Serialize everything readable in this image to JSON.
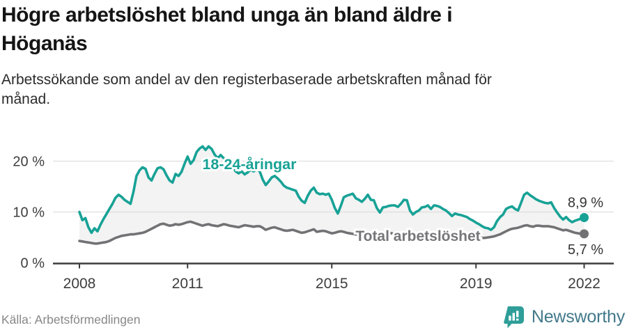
{
  "header": {
    "title": "Högre arbetslöshet bland unga än bland äldre i\nHöganäs",
    "subtitle": "Arbetssökande som andel av den registerbaserade arbetskraften månad för\nmånad."
  },
  "footer": {
    "source": "Källa: Arbetsförmedlingen",
    "brand_name": "Newsworthy"
  },
  "colors": {
    "young_line": "#18a296",
    "total_line": "#727275",
    "fill_between": "#f3f3f3",
    "gridline": "#e2e2e2",
    "axis": "#3c3c3c",
    "tick_label": "#3d3d3d",
    "end_label": "#333333",
    "total_label": "#76767a",
    "brand_icon": "#2f9e98",
    "brand_text": "#42798a",
    "title_text": "#151515"
  },
  "chart_data": {
    "type": "line",
    "unit": "%",
    "frequency": "monthly",
    "x_start": "2008-01",
    "x_end": "2022-01",
    "ylim": [
      0,
      24
    ],
    "grid": "horizontal",
    "yticks": [
      {
        "value": 0,
        "label": "0 %"
      },
      {
        "value": 10,
        "label": "10 %"
      },
      {
        "value": 20,
        "label": "20 %"
      }
    ],
    "xticks": [
      {
        "year": 2008,
        "label": "2008"
      },
      {
        "year": 2011,
        "label": "2011"
      },
      {
        "year": 2015,
        "label": "2015"
      },
      {
        "year": 2019,
        "label": "2019"
      },
      {
        "year": 2022,
        "label": "2022"
      }
    ],
    "series": [
      {
        "name": "18-24-åringar",
        "inline_label": "18-24-åringar",
        "end_label": "8,9 %",
        "end_value": 8.9,
        "values": [
          10.0,
          8.4,
          8.8,
          7.0,
          5.9,
          6.8,
          6.2,
          7.5,
          8.6,
          9.6,
          10.6,
          11.6,
          12.8,
          13.4,
          13.0,
          12.4,
          12.0,
          11.6,
          14.0,
          17.1,
          18.2,
          18.8,
          18.5,
          16.8,
          16.2,
          17.5,
          18.6,
          18.8,
          18.4,
          17.2,
          16.2,
          15.8,
          17.5,
          17.1,
          17.9,
          19.5,
          20.9,
          19.5,
          20.2,
          21.8,
          22.5,
          22.9,
          22.2,
          22.9,
          22.4,
          21.3,
          20.6,
          21.2,
          20.6,
          19.8,
          19.2,
          18.6,
          18.0,
          17.6,
          18.0,
          17.4,
          17.8,
          18.3,
          18.0,
          18.4,
          18.0,
          16.4,
          15.3,
          16.0,
          16.8,
          17.1,
          16.6,
          16.0,
          15.2,
          14.8,
          14.6,
          14.4,
          14.2,
          13.0,
          12.2,
          11.8,
          13.2,
          14.2,
          14.8,
          13.8,
          13.5,
          13.6,
          13.4,
          13.6,
          12.4,
          10.8,
          9.7,
          11.2,
          12.9,
          13.2,
          13.4,
          13.6,
          12.7,
          12.4,
          12.0,
          12.6,
          13.4,
          12.4,
          12.3,
          10.8,
          9.9,
          10.9,
          11.0,
          11.2,
          11.3,
          11.3,
          11.0,
          11.6,
          12.4,
          12.3,
          10.3,
          9.5,
          10.0,
          10.3,
          10.9,
          11.0,
          11.3,
          10.6,
          11.3,
          11.2,
          11.0,
          10.6,
          10.3,
          9.8,
          9.2,
          9.7,
          9.5,
          9.4,
          9.2,
          9.0,
          8.6,
          8.3,
          7.9,
          7.6,
          7.2,
          6.9,
          6.8,
          6.5,
          7.0,
          8.2,
          9.0,
          9.5,
          10.6,
          10.9,
          11.1,
          10.6,
          10.3,
          11.8,
          13.4,
          13.8,
          13.3,
          12.9,
          12.5,
          12.2,
          12.0,
          11.8,
          11.7,
          11.9,
          10.8,
          9.9,
          9.1,
          8.5,
          9.0,
          8.4,
          8.0,
          8.3,
          8.5,
          8.7,
          8.9
        ]
      },
      {
        "name": "Total arbetslöshet",
        "inline_label": "Total arbetslöshet",
        "end_label": "5,7 %",
        "end_value": 5.7,
        "values": [
          4.3,
          4.2,
          4.1,
          4.0,
          3.9,
          3.8,
          3.8,
          3.9,
          4.0,
          4.1,
          4.3,
          4.6,
          4.9,
          5.1,
          5.3,
          5.4,
          5.5,
          5.6,
          5.6,
          5.7,
          5.8,
          5.9,
          6.1,
          6.4,
          6.7,
          7.0,
          7.3,
          7.6,
          7.7,
          7.5,
          7.3,
          7.4,
          7.6,
          7.5,
          7.6,
          7.8,
          8.0,
          8.1,
          7.9,
          7.7,
          7.5,
          7.3,
          7.5,
          7.6,
          7.4,
          7.3,
          7.2,
          7.4,
          7.6,
          7.5,
          7.3,
          7.2,
          7.1,
          7.0,
          7.2,
          7.4,
          7.3,
          7.2,
          7.1,
          7.2,
          7.2,
          6.9,
          6.5,
          6.7,
          6.9,
          7.0,
          6.8,
          6.6,
          6.4,
          6.3,
          6.4,
          6.5,
          6.3,
          6.1,
          5.9,
          6.0,
          6.2,
          6.4,
          6.6,
          6.1,
          6.2,
          6.3,
          6.2,
          6.0,
          5.8,
          5.9,
          6.1,
          6.2,
          6.1,
          5.9,
          5.8,
          5.7,
          5.6,
          5.4,
          5.5,
          5.7,
          5.8,
          5.9,
          6.0,
          5.9,
          5.8,
          5.7,
          5.8,
          5.9,
          5.8,
          5.7,
          5.6,
          5.7,
          5.8,
          5.9,
          5.9,
          5.8,
          5.7,
          5.6,
          5.7,
          5.8,
          5.7,
          5.6,
          5.5,
          5.6,
          5.6,
          5.5,
          5.4,
          5.3,
          5.2,
          5.1,
          5.2,
          5.3,
          5.2,
          5.1,
          5.0,
          5.1,
          5.1,
          5.0,
          4.9,
          4.9,
          5.0,
          5.1,
          5.2,
          5.4,
          5.6,
          5.9,
          6.2,
          6.5,
          6.7,
          6.8,
          6.9,
          7.1,
          7.3,
          7.4,
          7.2,
          7.1,
          7.3,
          7.3,
          7.2,
          7.2,
          7.2,
          7.1,
          7.0,
          6.8,
          6.6,
          6.4,
          6.5,
          6.3,
          6.1,
          5.9,
          5.8,
          5.7,
          5.7
        ]
      }
    ]
  }
}
